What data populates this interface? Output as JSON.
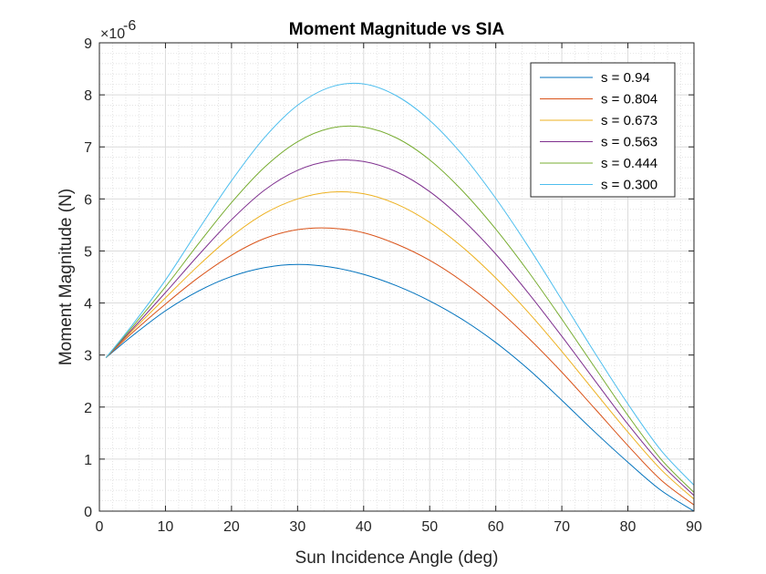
{
  "chart_data": {
    "type": "line",
    "title": "Moment Magnitude vs SIA",
    "xlabel": "Sun Incidence Angle (deg)",
    "ylabel": "Moment Magnitude (N)",
    "y_exponent_label": "×10",
    "y_exponent_power": "-6",
    "xlim": [
      0,
      90
    ],
    "ylim": [
      0,
      9
    ],
    "xticks": [
      "0",
      "10",
      "20",
      "30",
      "40",
      "50",
      "60",
      "70",
      "80",
      "90"
    ],
    "yticks": [
      "0",
      "1",
      "2",
      "3",
      "4",
      "5",
      "6",
      "7",
      "8",
      "9"
    ],
    "grid": true,
    "minor_grid": true,
    "legend_position": "top-right",
    "x": [
      1,
      5,
      10,
      15,
      20,
      25,
      30,
      35,
      40,
      45,
      50,
      55,
      60,
      65,
      70,
      75,
      80,
      85,
      90
    ],
    "series": [
      {
        "name": "s = 0.94",
        "color": "#0072BD",
        "values": [
          2.95,
          3.37,
          3.85,
          4.23,
          4.51,
          4.68,
          4.74,
          4.69,
          4.55,
          4.33,
          4.04,
          3.68,
          3.24,
          2.72,
          2.13,
          1.52,
          0.94,
          0.4,
          0.0
        ]
      },
      {
        "name": "s = 0.804",
        "color": "#D95319",
        "values": [
          2.95,
          3.43,
          3.98,
          4.49,
          4.92,
          5.24,
          5.41,
          5.44,
          5.35,
          5.13,
          4.82,
          4.41,
          3.91,
          3.32,
          2.67,
          1.97,
          1.26,
          0.6,
          0.12
        ]
      },
      {
        "name": "s = 0.673",
        "color": "#EDB120",
        "values": [
          2.95,
          3.47,
          4.1,
          4.72,
          5.28,
          5.72,
          6.0,
          6.13,
          6.1,
          5.9,
          5.55,
          5.07,
          4.48,
          3.81,
          3.07,
          2.29,
          1.52,
          0.8,
          0.23
        ]
      },
      {
        "name": "s = 0.563",
        "color": "#7E2F8E",
        "values": [
          2.95,
          3.5,
          4.2,
          4.92,
          5.6,
          6.17,
          6.55,
          6.73,
          6.72,
          6.52,
          6.14,
          5.6,
          4.94,
          4.18,
          3.36,
          2.51,
          1.67,
          0.91,
          0.3
        ]
      },
      {
        "name": "s = 0.444",
        "color": "#77AC30",
        "values": [
          2.95,
          3.54,
          4.31,
          5.14,
          5.93,
          6.61,
          7.1,
          7.36,
          7.38,
          7.17,
          6.75,
          6.15,
          5.42,
          4.59,
          3.69,
          2.76,
          1.84,
          1.0,
          0.36
        ]
      },
      {
        "name": "s = 0.300",
        "color": "#4DBEEE",
        "values": [
          2.95,
          3.58,
          4.44,
          5.41,
          6.35,
          7.18,
          7.8,
          8.15,
          8.21,
          7.98,
          7.51,
          6.84,
          6.01,
          5.07,
          4.06,
          3.04,
          2.06,
          1.17,
          0.5
        ]
      }
    ]
  }
}
